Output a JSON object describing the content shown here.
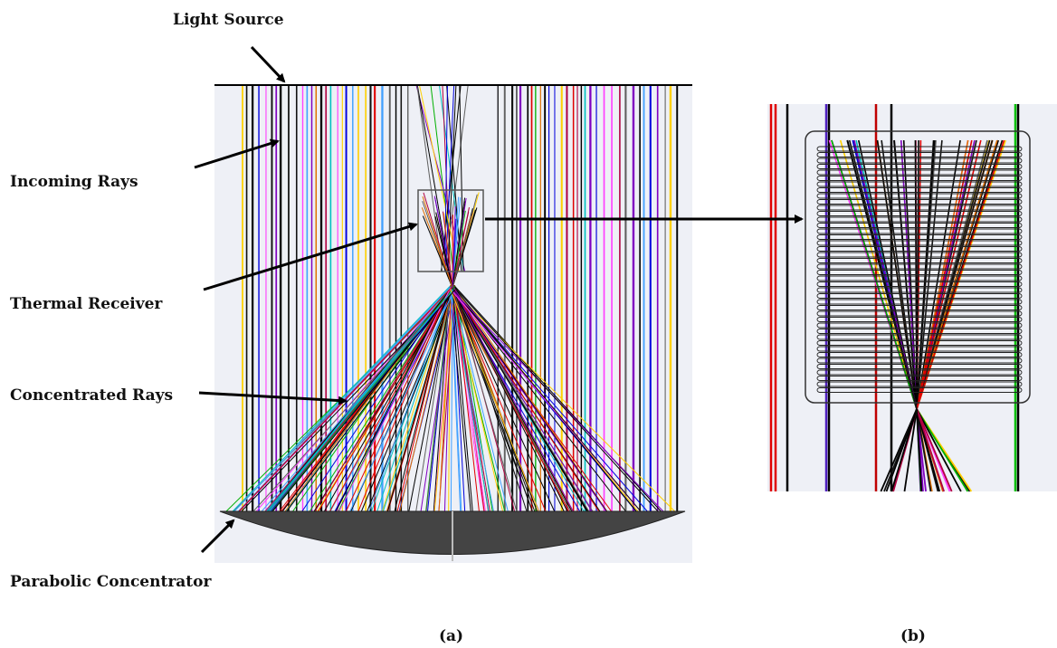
{
  "labels": {
    "light_source": "Light Source",
    "incoming_rays": "Incoming Rays",
    "thermal_receiver": "Thermal Receiver",
    "concentrated_rays": "Concentrated Rays",
    "parabolic_concentrator": "Parabolic Concentrator"
  },
  "captions": {
    "a": "(a)",
    "b": "(b)"
  },
  "colors": {
    "ray_palette": [
      "#000000",
      "#000000",
      "#000000",
      "#111111",
      "#e00000",
      "#00b000",
      "#0000dd",
      "#ffd000",
      "#8000c0",
      "#00c0c0",
      "#ff40ff",
      "#606060",
      "#e07000",
      "#000000",
      "#b00040",
      "#40a0ff"
    ],
    "background_panel": "#eef0f6",
    "concentrator_fill": "#444444",
    "arrow": "#000000"
  },
  "icons": [
    "arrow-pointer-icon"
  ]
}
